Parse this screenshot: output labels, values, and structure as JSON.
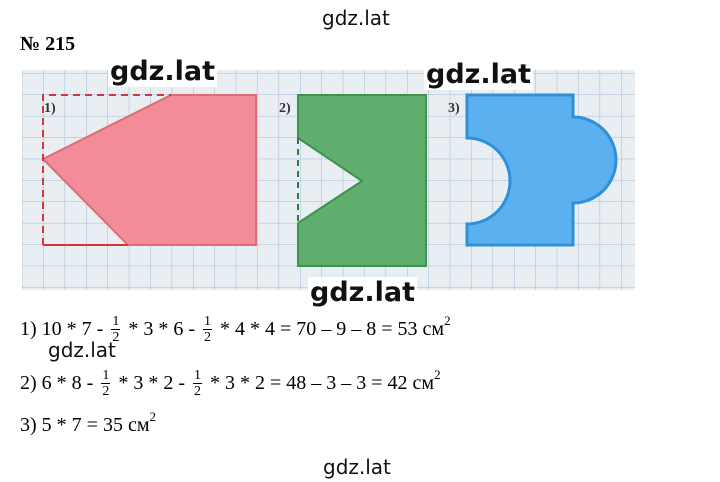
{
  "watermarks": [
    "gdz.lat",
    "gdz.lat",
    "gdz.lat",
    "gdz.lat",
    "gdz.lat",
    "gdz.lat"
  ],
  "header": {
    "number": "№ 215"
  },
  "figure": {
    "labels": [
      "1)",
      "2)",
      "3)"
    ]
  },
  "solutions": [
    [
      {
        "text": "1) 10 * 7 - "
      },
      {
        "num": "1",
        "den": "2"
      },
      {
        "text": " * 3 * 6 - "
      },
      {
        "num": "1",
        "den": "2"
      },
      {
        "text": " * 4 * 4 = 70 – 9 – 8 = 53 см"
      },
      {
        "sup": "2"
      }
    ],
    [
      {
        "text": "2) 6 * 8 - "
      },
      {
        "num": "1",
        "den": "2"
      },
      {
        "text": " * 3 * 2 - "
      },
      {
        "num": "1",
        "den": "2"
      },
      {
        "text": " * 3 * 2 = 48 – 3 – 3 = 42 см"
      },
      {
        "sup": "2"
      }
    ],
    [
      {
        "text": "3) 5 * 7 = 35 см"
      },
      {
        "sup": "2"
      }
    ]
  ]
}
